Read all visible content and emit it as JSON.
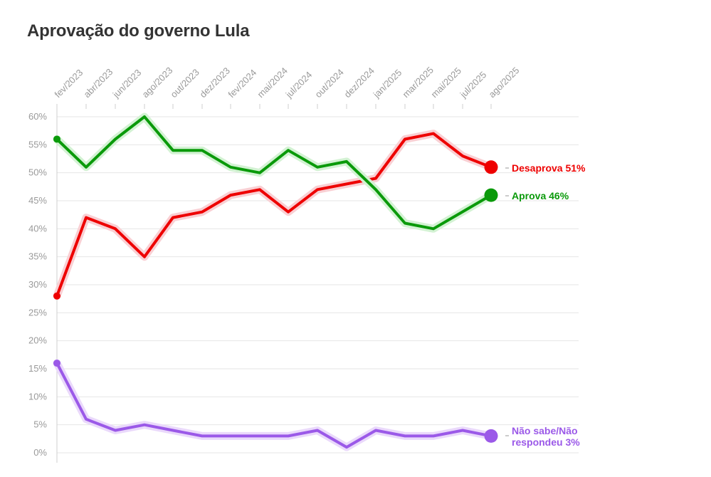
{
  "chart_data": {
    "type": "line",
    "title": "Aprovação do governo Lula",
    "x_ticks": [
      "fev/2023",
      "abr/2023",
      "jun/2023",
      "ago/2023",
      "out/2023",
      "dez/2023",
      "fev/2024",
      "mai/2024",
      "jul/2024",
      "out/2024",
      "dez/2024",
      "jan/2025",
      "mar/2025",
      "mai/2025",
      "jul/2025",
      "ago/2025"
    ],
    "y_ticks": [
      "0%",
      "5%",
      "10%",
      "15%",
      "20%",
      "25%",
      "30%",
      "35%",
      "40%",
      "45%",
      "50%",
      "55%",
      "60%"
    ],
    "ylim": [
      0,
      60
    ],
    "y_unit": "%",
    "grid": true,
    "series": [
      {
        "key": "desaprova",
        "label_line1": "Desaprova 51%",
        "label_line2": "",
        "color": "#ee0000",
        "halo": "#f9cfd3",
        "points": [
          {
            "x": "fev/2023",
            "y": 28
          },
          {
            "x": "abr/2023",
            "y": 42
          },
          {
            "x": "jun/2023",
            "y": 40
          },
          {
            "x": "ago/2023",
            "y": 35
          },
          {
            "x": "out/2023",
            "y": 42
          },
          {
            "x": "dez/2023",
            "y": 43
          },
          {
            "x": "fev/2024",
            "y": 46
          },
          {
            "x": "mai/2024",
            "y": 47
          },
          {
            "x": "jul/2024",
            "y": 43
          },
          {
            "x": "out/2024",
            "y": 47
          },
          {
            "x": "jan/2025",
            "y": 49
          },
          {
            "x": "mar/2025",
            "y": 56
          },
          {
            "x": "mai/2025",
            "y": 57
          },
          {
            "x": "jul/2025",
            "y": 53
          },
          {
            "x": "ago/2025",
            "y": 51
          }
        ]
      },
      {
        "key": "aprova",
        "label_line1": "Aprova 46%",
        "label_line2": "",
        "color": "#0a9a0a",
        "halo": "#d3f2d3",
        "points": [
          {
            "x": "fev/2023",
            "y": 56
          },
          {
            "x": "abr/2023",
            "y": 51
          },
          {
            "x": "jun/2023",
            "y": 56
          },
          {
            "x": "ago/2023",
            "y": 60
          },
          {
            "x": "out/2023",
            "y": 54
          },
          {
            "x": "dez/2023",
            "y": 54
          },
          {
            "x": "fev/2024",
            "y": 51
          },
          {
            "x": "mai/2024",
            "y": 50
          },
          {
            "x": "jul/2024",
            "y": 54
          },
          {
            "x": "out/2024",
            "y": 51
          },
          {
            "x": "dez/2024",
            "y": 52
          },
          {
            "x": "jan/2025",
            "y": 47
          },
          {
            "x": "mar/2025",
            "y": 41
          },
          {
            "x": "mai/2025",
            "y": 40
          },
          {
            "x": "ago/2025",
            "y": 46
          }
        ]
      },
      {
        "key": "nao_sabe",
        "label_line1": "Não sabe/Não",
        "label_line2": "respondeu 3%",
        "color": "#9b59e8",
        "halo": "#ead9fb",
        "points": [
          {
            "x": "fev/2023",
            "y": 16
          },
          {
            "x": "abr/2023",
            "y": 6
          },
          {
            "x": "jun/2023",
            "y": 4
          },
          {
            "x": "ago/2023",
            "y": 5
          },
          {
            "x": "out/2023",
            "y": 4
          },
          {
            "x": "dez/2023",
            "y": 3
          },
          {
            "x": "fev/2024",
            "y": 3
          },
          {
            "x": "mai/2024",
            "y": 3
          },
          {
            "x": "jul/2024",
            "y": 3
          },
          {
            "x": "out/2024",
            "y": 4
          },
          {
            "x": "dez/2024",
            "y": 1
          },
          {
            "x": "jan/2025",
            "y": 4
          },
          {
            "x": "mar/2025",
            "y": 3
          },
          {
            "x": "mai/2025",
            "y": 3
          },
          {
            "x": "jul/2025",
            "y": 4
          },
          {
            "x": "ago/2025",
            "y": 3
          }
        ]
      }
    ]
  }
}
